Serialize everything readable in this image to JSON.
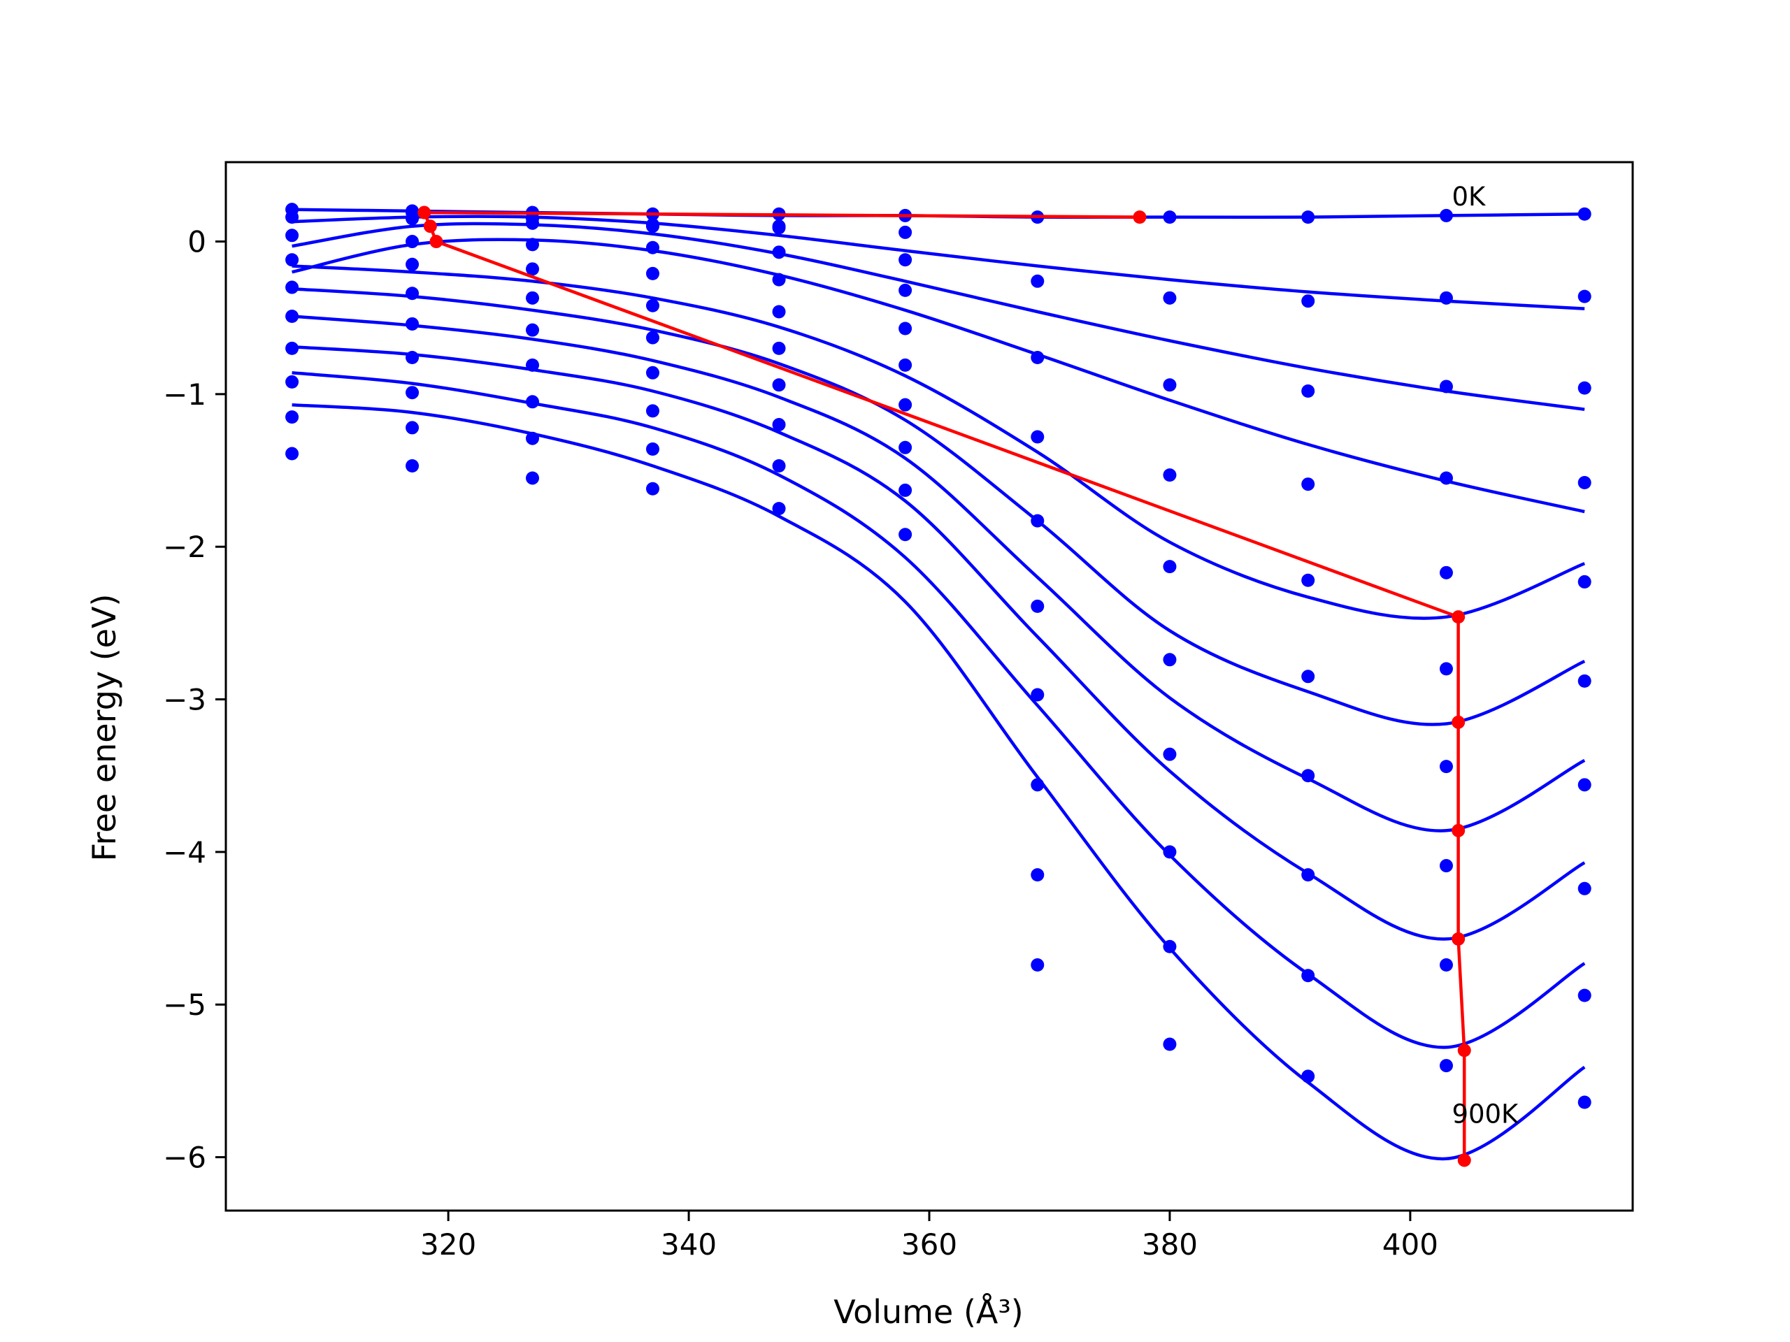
{
  "chart_data": {
    "type": "line",
    "xlabel": "Volume (Å³)",
    "ylabel": "Free energy (eV)",
    "xlim": [
      301.5,
      418.5
    ],
    "ylim": [
      -6.35,
      0.52
    ],
    "xticks": [
      320,
      340,
      360,
      380,
      400
    ],
    "yticks": [
      0,
      -1,
      -2,
      -3,
      -4,
      -5,
      -6
    ],
    "xtick_labels": [
      "320",
      "340",
      "360",
      "380",
      "400"
    ],
    "ytick_labels": [
      "0",
      "−1",
      "−2",
      "−3",
      "−4",
      "−5",
      "−6"
    ],
    "grid": false,
    "legend": "none",
    "colors": {
      "fit": "#0000ff",
      "minimum_path": "#ff0000",
      "axes": "#000000"
    },
    "annotations": [
      {
        "text": "0K",
        "x": 403,
        "y": 0.29
      },
      {
        "text": "900K",
        "x": 403,
        "y": -5.72
      }
    ],
    "volumes": [
      307,
      317,
      327,
      337,
      347.5,
      358,
      369,
      380,
      391.5,
      403,
      414.5
    ],
    "series": [
      {
        "points": [
          0.21,
          0.2,
          0.19,
          0.18,
          0.18,
          0.17,
          0.16,
          0.16,
          0.16,
          0.17,
          0.18
        ],
        "curve_x": [
          307,
          317,
          327,
          337,
          347.5,
          358,
          369,
          380,
          391.5,
          403,
          414.5
        ],
        "curve_y": [
          0.21,
          0.2,
          0.19,
          0.18,
          0.17,
          0.17,
          0.16,
          0.16,
          0.16,
          0.17,
          0.18
        ]
      },
      {
        "points": [
          0.16,
          0.19,
          0.15,
          0.11,
          0.1,
          0.06,
          -0.26,
          -0.37,
          -0.39,
          -0.37,
          -0.36
        ],
        "curve_x": [
          307,
          317,
          327,
          337,
          347.5,
          358,
          369,
          380,
          391.5,
          403,
          414.5
        ],
        "curve_y": [
          0.13,
          0.16,
          0.16,
          0.12,
          0.04,
          -0.06,
          -0.16,
          -0.25,
          -0.33,
          -0.39,
          -0.44
        ]
      },
      {
        "points": [
          0.04,
          0.15,
          0.12,
          0.1,
          0.09,
          -0.12,
          -0.76,
          -0.94,
          -0.98,
          -0.95,
          -0.96
        ],
        "curve_x": [
          307,
          317,
          327,
          337,
          347.5,
          358,
          369,
          380,
          391.5,
          403,
          414.5
        ],
        "curve_y": [
          -0.03,
          0.1,
          0.11,
          0.05,
          -0.08,
          -0.26,
          -0.46,
          -0.65,
          -0.83,
          -0.98,
          -1.1
        ]
      },
      {
        "points": [
          -0.12,
          0.0,
          -0.02,
          -0.04,
          -0.07,
          -0.32,
          -1.28,
          -1.53,
          -1.59,
          -1.55,
          -1.58
        ],
        "curve_x": [
          307,
          317,
          327,
          337,
          347.5,
          358,
          369,
          380,
          391.5,
          403,
          414.5
        ],
        "curve_y": [
          -0.2,
          -0.02,
          0.01,
          -0.06,
          -0.22,
          -0.45,
          -0.74,
          -1.04,
          -1.33,
          -1.57,
          -1.77
        ]
      },
      {
        "points": [
          -0.3,
          -0.15,
          -0.18,
          -0.21,
          -0.25,
          -0.57,
          -1.83,
          -2.13,
          -2.22,
          -2.17,
          -2.23
        ],
        "curve_x": [
          307,
          317,
          327,
          337,
          347.5,
          358,
          369,
          380,
          391.5,
          403,
          414.5
        ],
        "curve_y": [
          -0.16,
          -0.2,
          -0.26,
          -0.37,
          -0.56,
          -0.88,
          -1.38,
          -1.97,
          -2.33,
          -2.46,
          -2.11
        ]
      },
      {
        "points": [
          -0.49,
          -0.34,
          -0.37,
          -0.42,
          -0.46,
          -0.81,
          -2.39,
          -2.74,
          -2.85,
          -2.8,
          -2.88
        ],
        "curve_x": [
          307,
          317,
          327,
          337,
          347.5,
          358,
          369,
          380,
          391.5,
          403,
          414.5
        ],
        "curve_y": [
          -0.31,
          -0.36,
          -0.45,
          -0.58,
          -0.8,
          -1.17,
          -1.83,
          -2.55,
          -2.95,
          -3.16,
          -2.75
        ]
      },
      {
        "points": [
          -0.7,
          -0.54,
          -0.58,
          -0.63,
          -0.7,
          -1.07,
          -2.97,
          -3.36,
          -3.5,
          -3.44,
          -3.56
        ],
        "curve_x": [
          307,
          317,
          327,
          337,
          347.5,
          358,
          369,
          380,
          391.5,
          403,
          414.5
        ],
        "curve_y": [
          -0.49,
          -0.55,
          -0.64,
          -0.78,
          -1.02,
          -1.42,
          -2.2,
          -2.99,
          -3.52,
          -3.86,
          -3.4
        ]
      },
      {
        "points": [
          -0.92,
          -0.76,
          -0.81,
          -0.86,
          -0.94,
          -1.35,
          -3.56,
          -4.0,
          -4.15,
          -4.09,
          -4.24
        ],
        "curve_x": [
          307,
          317,
          327,
          337,
          347.5,
          358,
          369,
          380,
          391.5,
          403,
          414.5
        ],
        "curve_y": [
          -0.69,
          -0.74,
          -0.84,
          -0.98,
          -1.25,
          -1.7,
          -2.59,
          -3.47,
          -4.14,
          -4.57,
          -4.07
        ]
      },
      {
        "points": [
          -1.15,
          -0.99,
          -1.05,
          -1.11,
          -1.2,
          -1.63,
          -4.15,
          -4.62,
          -4.81,
          -4.74,
          -4.94
        ],
        "curve_x": [
          307,
          317,
          327,
          337,
          347.5,
          358,
          369,
          380,
          391.5,
          403,
          414.5
        ],
        "curve_y": [
          -0.86,
          -0.93,
          -1.06,
          -1.22,
          -1.53,
          -2.07,
          -3.04,
          -4.02,
          -4.8,
          -5.28,
          -4.73
        ]
      },
      {
        "points": [
          -1.39,
          -1.22,
          -1.29,
          -1.36,
          -1.47,
          -1.92,
          -4.74,
          -5.26,
          -5.47,
          -5.4,
          -5.64
        ],
        "curve_x": [
          307,
          317,
          327,
          337,
          347.5,
          358,
          369,
          380,
          391.5,
          403,
          414.5
        ],
        "curve_y": [
          -1.07,
          -1.12,
          -1.26,
          -1.47,
          -1.8,
          -2.36,
          -3.51,
          -4.63,
          -5.51,
          -6.01,
          -5.41
        ]
      },
      {
        "points": [
          -1.47,
          -1.55,
          -1.62,
          -1.75
        ],
        "point_x": [
          317,
          327,
          337,
          347.5
        ]
      }
    ],
    "minimum_path": {
      "x": [
        377.5,
        318,
        318.5,
        319,
        404,
        404,
        404,
        404,
        404.5,
        404.5
      ],
      "y": [
        0.16,
        0.19,
        0.1,
        0.0,
        -2.46,
        -3.15,
        -3.86,
        -4.57,
        -5.3,
        -6.02
      ]
    }
  }
}
